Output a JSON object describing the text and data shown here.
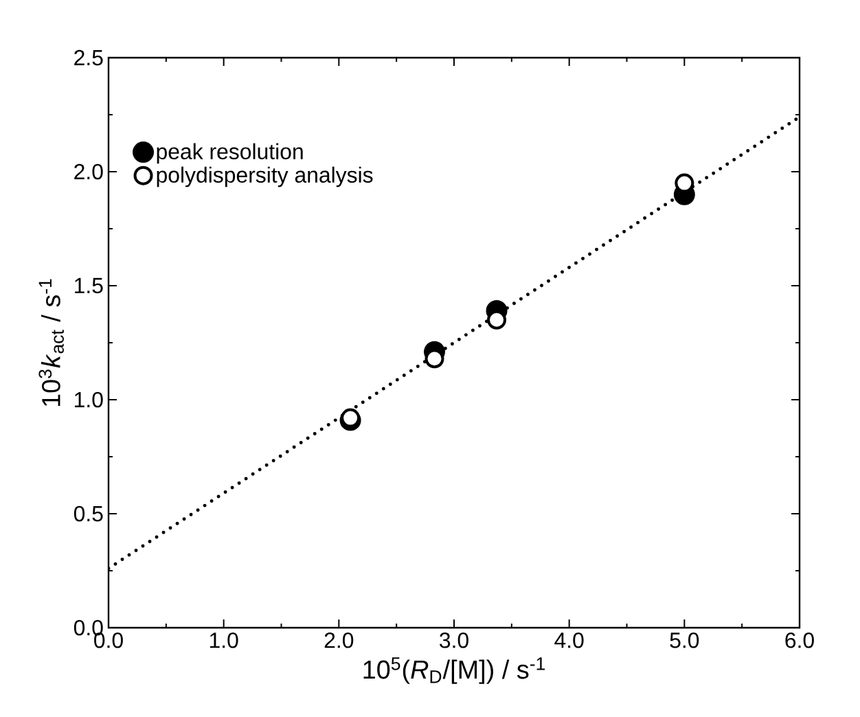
{
  "chart_data": {
    "type": "scatter",
    "xlabel": "10$^{5}$(*R*$_{D}$/[M]) / s$^{-1}$",
    "ylabel": "10$^{3}$*k*$_{act}$ / s$^{-1}$",
    "xlim": [
      0,
      6
    ],
    "ylim": [
      0,
      2.5
    ],
    "xticks": [
      {
        "value": 0,
        "label": "0.0"
      },
      {
        "value": 1,
        "label": "1.0"
      },
      {
        "value": 2,
        "label": "2.0"
      },
      {
        "value": 3,
        "label": "3.0"
      },
      {
        "value": 4,
        "label": "4.0"
      },
      {
        "value": 5,
        "label": "5.0"
      },
      {
        "value": 6,
        "label": "6.0"
      }
    ],
    "yticks": [
      {
        "value": 0,
        "label": "0.0"
      },
      {
        "value": 0.5,
        "label": "0.5"
      },
      {
        "value": 1,
        "label": "1.0"
      },
      {
        "value": 1.5,
        "label": "1.5"
      },
      {
        "value": 2,
        "label": "2.0"
      },
      {
        "value": 2.5,
        "label": "2.5"
      }
    ],
    "legend": "top left",
    "grid": false,
    "series": [
      {
        "name": "peak resolution",
        "color": "#000000",
        "x": [
          2.1,
          2.83,
          3.37,
          5.0
        ],
        "values": [
          0.91,
          1.21,
          1.39,
          1.9
        ],
        "marker": "circle"
      },
      {
        "name": "polydispersity analysis",
        "color": "#000000",
        "x": [
          2.1,
          2.83,
          3.37,
          5.0
        ],
        "values": [
          0.92,
          1.18,
          1.35,
          1.95
        ],
        "marker": "open circle"
      },
      {
        "type": "line",
        "color": "#000000",
        "x": [
          0,
          6
        ],
        "values": [
          0.26,
          2.24
        ],
        "line_style": "dotted",
        "marker": "none"
      }
    ]
  }
}
